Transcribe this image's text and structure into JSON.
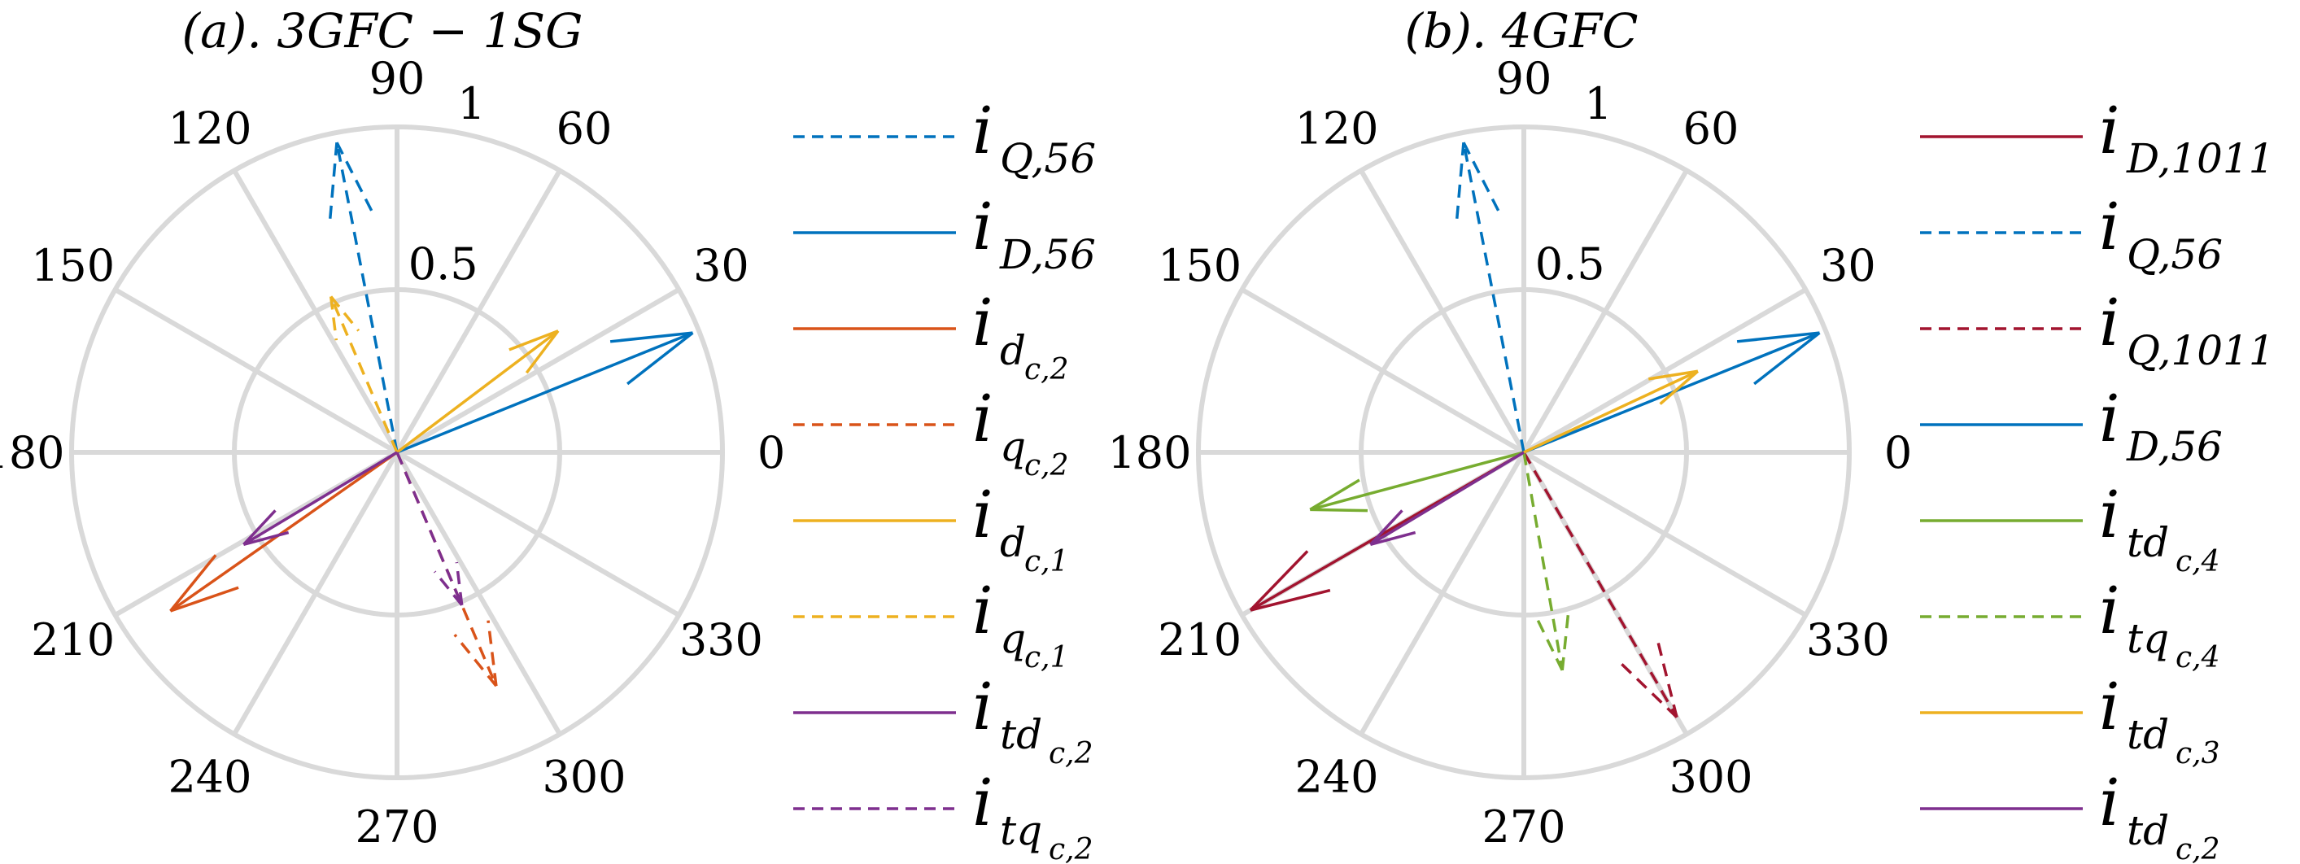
{
  "chart_data": [
    {
      "type": "polar-compass",
      "title": "(a). 3GFC − 1SG",
      "angle_ticks": [
        "0",
        "30",
        "60",
        "90",
        "120",
        "150",
        "180",
        "210",
        "240",
        "270",
        "300",
        "330"
      ],
      "radial_ticks": [
        "0.5",
        "1"
      ],
      "rlim": [
        0,
        1
      ],
      "grid": true,
      "legend_position": "right",
      "series": [
        {
          "legend_main": "i",
          "legend_sub": "Q,56",
          "legend_subsub": "",
          "color": "#0072BD",
          "dashed": true,
          "angle_deg": 101,
          "magnitude": 0.97
        },
        {
          "legend_main": "i",
          "legend_sub": "D,56",
          "legend_subsub": "",
          "color": "#0072BD",
          "dashed": false,
          "angle_deg": 22,
          "magnitude": 0.98
        },
        {
          "legend_main": "i",
          "legend_sub": "d",
          "legend_subsub": "c,2",
          "color": "#D95319",
          "dashed": false,
          "angle_deg": 215,
          "magnitude": 0.85
        },
        {
          "legend_main": "i",
          "legend_sub": "q",
          "legend_subsub": "c,2",
          "color": "#D95319",
          "dashed": true,
          "angle_deg": 293,
          "magnitude": 0.78
        },
        {
          "legend_main": "i",
          "legend_sub": "d",
          "legend_subsub": "c,1",
          "color": "#EDB120",
          "dashed": false,
          "angle_deg": 37,
          "magnitude": 0.62
        },
        {
          "legend_main": "i",
          "legend_sub": "q",
          "legend_subsub": "c,1",
          "color": "#EDB120",
          "dashed": true,
          "angle_deg": 113,
          "magnitude": 0.52
        },
        {
          "legend_main": "i",
          "legend_sub": "td",
          "legend_subsub": "c,2",
          "color": "#7E2F8E",
          "dashed": false,
          "angle_deg": 211,
          "magnitude": 0.55
        },
        {
          "legend_main": "i",
          "legend_sub": "tq",
          "legend_subsub": "c,2",
          "color": "#7E2F8E",
          "dashed": true,
          "angle_deg": 293,
          "magnitude": 0.51
        }
      ]
    },
    {
      "type": "polar-compass",
      "title": "(b). 4GFC",
      "angle_ticks": [
        "0",
        "30",
        "60",
        "90",
        "120",
        "150",
        "180",
        "210",
        "240",
        "270",
        "300",
        "330"
      ],
      "radial_ticks": [
        "0.5",
        "1"
      ],
      "rlim": [
        0,
        1
      ],
      "grid": true,
      "legend_position": "right",
      "series": [
        {
          "legend_main": "i",
          "legend_sub": "D,1011",
          "legend_subsub": "",
          "color": "#A2142F",
          "dashed": false,
          "angle_deg": 210,
          "magnitude": 0.97
        },
        {
          "legend_main": "i",
          "legend_sub": "Q,56",
          "legend_subsub": "",
          "color": "#0072BD",
          "dashed": true,
          "angle_deg": 101,
          "magnitude": 0.97
        },
        {
          "legend_main": "i",
          "legend_sub": "Q,1011",
          "legend_subsub": "",
          "color": "#A2142F",
          "dashed": true,
          "angle_deg": 300,
          "magnitude": 0.94
        },
        {
          "legend_main": "i",
          "legend_sub": "D,56",
          "legend_subsub": "",
          "color": "#0072BD",
          "dashed": false,
          "angle_deg": 22,
          "magnitude": 0.98
        },
        {
          "legend_main": "i",
          "legend_sub": "td",
          "legend_subsub": "c,4",
          "color": "#77AC30",
          "dashed": false,
          "angle_deg": 195,
          "magnitude": 0.68
        },
        {
          "legend_main": "i",
          "legend_sub": "tq",
          "legend_subsub": "c,4",
          "color": "#77AC30",
          "dashed": true,
          "angle_deg": 280,
          "magnitude": 0.68
        },
        {
          "legend_main": "i",
          "legend_sub": "td",
          "legend_subsub": "c,3",
          "color": "#EDB120",
          "dashed": false,
          "angle_deg": 25,
          "magnitude": 0.59
        },
        {
          "legend_main": "i",
          "legend_sub": "td",
          "legend_subsub": "c,2",
          "color": "#7E2F8E",
          "dashed": false,
          "angle_deg": 211,
          "magnitude": 0.55
        }
      ]
    }
  ]
}
